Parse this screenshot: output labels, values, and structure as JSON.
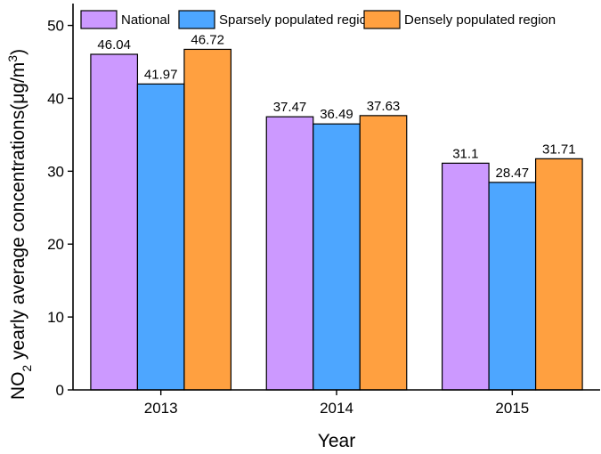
{
  "chart_data": {
    "type": "bar",
    "title": "",
    "xlabel": "Year",
    "ylabel": {
      "prefix": "NO",
      "subscript": "2",
      "middle": " yearly average concentrations(μg/m",
      "superscript": "3",
      "suffix": ")"
    },
    "categories": [
      "2013",
      "2014",
      "2015"
    ],
    "ylim": [
      0,
      53
    ],
    "yticks": [
      0,
      10,
      20,
      30,
      40,
      50
    ],
    "grid": false,
    "legend_position": "top",
    "series": [
      {
        "name": "National",
        "color": "#cc99ff",
        "values": [
          46.04,
          37.47,
          31.1
        ]
      },
      {
        "name": "Sparsely populated region",
        "color": "#4da6ff",
        "values": [
          41.97,
          36.49,
          28.47
        ]
      },
      {
        "name": "Densely populated region",
        "color": "#ffa040",
        "values": [
          46.72,
          37.63,
          31.71
        ]
      }
    ]
  }
}
